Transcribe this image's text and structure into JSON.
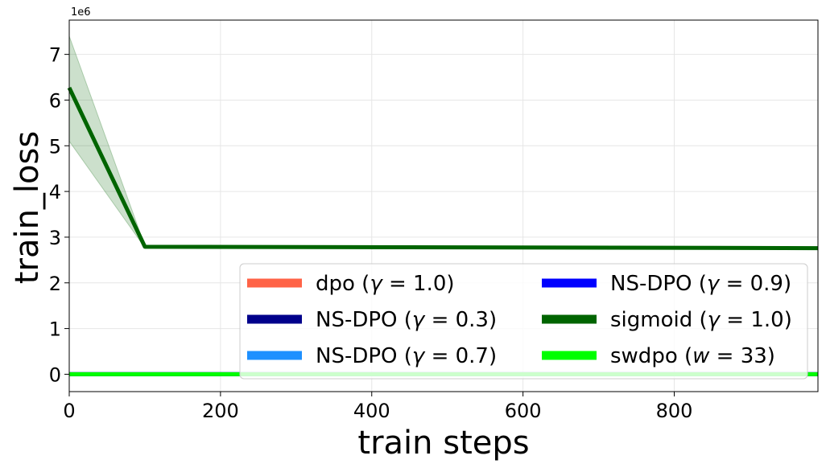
{
  "chart_data": {
    "type": "line",
    "title": "",
    "xlabel": "train steps",
    "ylabel": "train_loss",
    "y_offset_label": "1e6",
    "xlim": [
      0,
      990
    ],
    "ylim": [
      -0.38,
      7.75
    ],
    "xticks": [
      0,
      200,
      400,
      600,
      800
    ],
    "yticks": [
      0,
      1,
      2,
      3,
      4,
      5,
      6,
      7
    ],
    "grid": true,
    "legend_position": "lower-right",
    "legend_columns": 2,
    "series": [
      {
        "name": "dpo (γ = 1.0)",
        "color": "#ff6347",
        "x": [
          0,
          100,
          990
        ],
        "y": [
          0.0,
          0.0,
          0.0
        ]
      },
      {
        "name": "NS-DPO (γ = 0.3)",
        "color": "#00008b",
        "x": [
          0,
          100,
          990
        ],
        "y": [
          0.0,
          0.0,
          0.0
        ]
      },
      {
        "name": "NS-DPO (γ = 0.7)",
        "color": "#1e90ff",
        "x": [
          0,
          100,
          990
        ],
        "y": [
          0.0,
          0.0,
          0.0
        ]
      },
      {
        "name": "NS-DPO (γ = 0.9)",
        "color": "#0000ff",
        "x": [
          0,
          100,
          990
        ],
        "y": [
          0.0,
          0.0,
          0.0
        ]
      },
      {
        "name": "sigmoid (γ = 1.0)",
        "color": "#006400",
        "x": [
          0,
          100,
          990
        ],
        "y": [
          6.27,
          2.79,
          2.76
        ],
        "band_lower": [
          5.1,
          2.77,
          2.75
        ],
        "band_upper": [
          7.4,
          2.81,
          2.77
        ]
      },
      {
        "name": "swdpo (w = 33)",
        "color": "#00ff00",
        "x": [
          0,
          100,
          990
        ],
        "y": [
          0.0,
          0.0,
          0.0
        ]
      }
    ],
    "legend_entries": [
      {
        "prefix": "dpo (",
        "sym": "γ",
        "val": " = 1.0)",
        "color": "#ff6347"
      },
      {
        "prefix": "NS-DPO (",
        "sym": "γ",
        "val": " = 0.3)",
        "color": "#00008b"
      },
      {
        "prefix": "NS-DPO (",
        "sym": "γ",
        "val": " = 0.7)",
        "color": "#1e90ff"
      },
      {
        "prefix": "NS-DPO (",
        "sym": "γ",
        "val": " = 0.9)",
        "color": "#0000ff"
      },
      {
        "prefix": "sigmoid (",
        "sym": "γ",
        "val": " = 1.0)",
        "color": "#006400"
      },
      {
        "prefix": "swdpo (",
        "sym": "w",
        "val": " = 33)",
        "color": "#00ff00"
      }
    ]
  }
}
